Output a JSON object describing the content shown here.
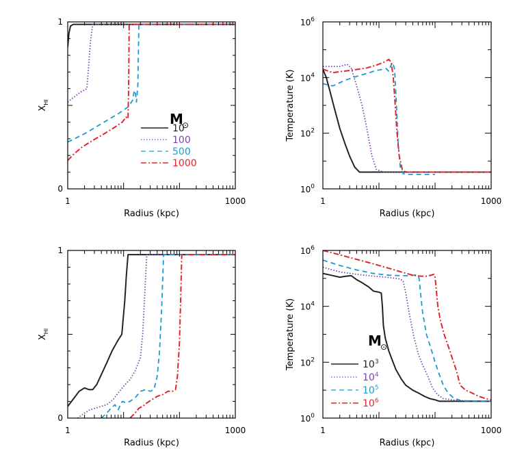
{
  "chart_data": [
    {
      "type": "line",
      "panel": "top-left",
      "xlabel": "Radius (kpc)",
      "ylabel": "X_HI",
      "xscale": "log",
      "xlim": [
        1,
        1000
      ],
      "ylim": [
        0,
        1
      ],
      "xticklabels": [
        "1",
        "1000"
      ],
      "yticks": [
        {
          "value": 0,
          "label": "0"
        },
        {
          "value": 1,
          "label": "1"
        }
      ],
      "legend": {
        "title": "M",
        "placement": "center-right"
      },
      "series": [
        {
          "name": "10",
          "color": "#222222",
          "width": 2.0,
          "dash": "none",
          "style": "solid",
          "x": [
            1,
            1.05,
            1.12,
            1.25,
            2,
            10,
            1000
          ],
          "y": [
            0.85,
            0.93,
            0.975,
            0.985,
            0.985,
            0.985,
            0.985
          ]
        },
        {
          "name": "100",
          "color": "#7b3fb3",
          "width": 1.8,
          "dash": "1.5,2.5",
          "style": "dotted",
          "x": [
            1,
            1.3,
            1.7,
            2.2,
            2.35,
            2.55,
            2.8,
            1000
          ],
          "y": [
            0.52,
            0.55,
            0.58,
            0.6,
            0.72,
            0.88,
            0.985,
            0.985
          ]
        },
        {
          "name": "500",
          "color": "#1a9bd0",
          "width": 1.8,
          "dash": "7,5",
          "style": "dashed",
          "x": [
            1,
            2,
            4,
            8,
            12,
            14.5,
            15.5,
            16.3,
            17,
            18,
            18.8,
            1000
          ],
          "y": [
            0.28,
            0.33,
            0.39,
            0.45,
            0.49,
            0.53,
            0.59,
            0.57,
            0.52,
            0.62,
            0.985,
            0.985
          ]
        },
        {
          "name": "1000",
          "color": "#e0262b",
          "width": 2.0,
          "dash": "8,3,2,3",
          "style": "dash-dot",
          "x": [
            1,
            1.3,
            1.8,
            2.8,
            4.5,
            7,
            9.5,
            11,
            12,
            12.3,
            12.6,
            1000
          ],
          "y": [
            0.17,
            0.21,
            0.25,
            0.29,
            0.33,
            0.37,
            0.4,
            0.43,
            0.42,
            0.6,
            0.985,
            0.985
          ]
        }
      ]
    },
    {
      "type": "line",
      "panel": "top-right",
      "xlabel": "Radius (kpc)",
      "ylabel": "Temperature (K)",
      "xscale": "log",
      "yscale": "log",
      "xlim": [
        1,
        1000
      ],
      "ylim": [
        1,
        1000000
      ],
      "xticklabels": [
        "1",
        "1000"
      ],
      "yticks": [
        {
          "value": 1,
          "base": "10",
          "exp": "0"
        },
        {
          "value": 100,
          "base": "10",
          "exp": "2"
        },
        {
          "value": 10000,
          "base": "10",
          "exp": "4"
        },
        {
          "value": 1000000,
          "base": "10",
          "exp": "6"
        }
      ],
      "series": [
        {
          "name": "10",
          "color": "#222222",
          "width": 2.0,
          "dash": "none",
          "x": [
            1,
            1.15,
            1.35,
            1.6,
            2.0,
            2.5,
            3.0,
            3.7,
            4.5,
            6,
            1000
          ],
          "y": [
            20000,
            10000,
            3000,
            800,
            150,
            40,
            15,
            6,
            4,
            4,
            4
          ]
        },
        {
          "name": "100",
          "color": "#7b3fb3",
          "width": 1.8,
          "dash": "1.5,2.5",
          "x": [
            1,
            2,
            2.7,
            3.2,
            4,
            5,
            6.2,
            7.5,
            9,
            12,
            1000
          ],
          "y": [
            25000,
            25000,
            30000,
            22000,
            5000,
            1000,
            120,
            15,
            5,
            4,
            4
          ]
        },
        {
          "name": "500",
          "color": "#1a9bd0",
          "width": 1.8,
          "dash": "7,5",
          "x": [
            1,
            1.5,
            2.5,
            4,
            6,
            9,
            12,
            13.5,
            14.8,
            16,
            17.5,
            19,
            20.5,
            22,
            24,
            27,
            30,
            38,
            100
          ],
          "y": [
            6000,
            5000,
            8000,
            11000,
            14000,
            18000,
            20000,
            21000,
            17000,
            25000,
            35000,
            20000,
            1000,
            40,
            6,
            3.5,
            3.3,
            3.3,
            3.3
          ]
        },
        {
          "name": "1000",
          "color": "#e0262b",
          "width": 2.0,
          "dash": "8,3,2,3",
          "x": [
            1,
            1.5,
            3,
            6,
            9,
            12,
            13.5,
            15,
            16.5,
            18,
            19.5,
            21,
            23,
            26,
            30,
            1000
          ],
          "y": [
            20000,
            15000,
            18000,
            22000,
            28000,
            35000,
            40000,
            45000,
            35000,
            10000,
            1000,
            100,
            15,
            5,
            4,
            4
          ]
        }
      ]
    },
    {
      "type": "line",
      "panel": "bottom-left",
      "xlabel": "Radius (kpc)",
      "ylabel": "X_HI",
      "xscale": "log",
      "xlim": [
        1,
        1000
      ],
      "ylim": [
        0,
        1
      ],
      "xticklabels": [
        "1",
        "1000"
      ],
      "yticks": [
        {
          "value": 0,
          "label": "0"
        },
        {
          "value": 1,
          "label": "1"
        }
      ],
      "series": [
        {
          "name": "10^3",
          "color": "#222222",
          "width": 2.0,
          "dash": "none",
          "x": [
            1,
            1.3,
            1.6,
            2,
            2.4,
            2.8,
            3.3,
            4,
            5,
            6.2,
            7.8,
            9.3,
            10.5,
            11.2,
            12,
            1000
          ],
          "y": [
            0.07,
            0.12,
            0.16,
            0.18,
            0.17,
            0.17,
            0.2,
            0.26,
            0.33,
            0.4,
            0.46,
            0.5,
            0.7,
            0.85,
            0.975,
            0.975
          ]
        },
        {
          "name": "10^4",
          "color": "#7b3fb3",
          "width": 1.8,
          "dash": "1.5,2.5",
          "x": [
            1.5,
            2,
            2.5,
            3.2,
            4,
            5,
            6.5,
            8,
            10,
            13,
            16,
            20,
            22,
            24,
            26,
            1000
          ],
          "y": [
            0,
            0.03,
            0.05,
            0.06,
            0.07,
            0.08,
            0.11,
            0.15,
            0.19,
            0.23,
            0.28,
            0.36,
            0.5,
            0.75,
            0.975,
            0.975
          ]
        },
        {
          "name": "10^5",
          "color": "#1a9bd0",
          "width": 1.8,
          "dash": "7,5",
          "x": [
            4,
            5,
            6,
            7,
            8,
            9.5,
            11,
            13,
            16,
            20,
            25,
            30,
            35,
            40,
            44,
            48,
            52,
            1000
          ],
          "y": [
            0,
            0.03,
            0.06,
            0.08,
            0.05,
            0.1,
            0.09,
            0.1,
            0.12,
            0.16,
            0.17,
            0.16,
            0.17,
            0.25,
            0.4,
            0.65,
            0.975,
            0.975
          ]
        },
        {
          "name": "10^6",
          "color": "#e0262b",
          "width": 2.0,
          "dash": "8,3,2,3",
          "x": [
            13,
            15,
            17,
            19,
            22,
            26,
            32,
            40,
            50,
            62,
            75,
            85,
            92,
            100,
            105,
            110,
            1000
          ],
          "y": [
            0,
            0.02,
            0.04,
            0.06,
            0.07,
            0.09,
            0.11,
            0.13,
            0.14,
            0.16,
            0.16,
            0.17,
            0.25,
            0.45,
            0.7,
            0.975,
            0.975
          ]
        }
      ]
    },
    {
      "type": "line",
      "panel": "bottom-right",
      "xlabel": "Radius (kpc)",
      "ylabel": "Temperature (K)",
      "xscale": "log",
      "yscale": "log",
      "xlim": [
        1,
        1000
      ],
      "ylim": [
        1,
        1000000
      ],
      "xticklabels": [
        "1",
        "1000"
      ],
      "yticks": [
        {
          "value": 1,
          "base": "10",
          "exp": "0"
        },
        {
          "value": 100,
          "base": "10",
          "exp": "2"
        },
        {
          "value": 10000,
          "base": "10",
          "exp": "4"
        },
        {
          "value": 1000000,
          "base": "10",
          "exp": "6"
        }
      ],
      "legend": {
        "title": "M",
        "placement": "bottom-left"
      },
      "series": [
        {
          "name": "10^3",
          "color": "#222222",
          "width": 2.0,
          "dash": "none",
          "x": [
            1,
            1.4,
            2,
            2.6,
            3.2,
            4,
            5,
            6.5,
            8,
            10,
            11,
            11.5,
            12,
            13,
            15,
            17.5,
            20,
            25,
            30,
            40,
            50,
            65,
            80,
            100,
            120,
            150,
            200,
            1000
          ],
          "y": [
            150000,
            130000,
            110000,
            120000,
            125000,
            90000,
            70000,
            50000,
            35000,
            32000,
            30000,
            10000,
            2000,
            700,
            250,
            110,
            55,
            25,
            15,
            10,
            8,
            6,
            5,
            4.5,
            4,
            4,
            4,
            4
          ]
        },
        {
          "name": "10^4",
          "color": "#7b3fb3",
          "width": 1.8,
          "dash": "1.5,2.5",
          "x": [
            1,
            2,
            4,
            8,
            14,
            20,
            24,
            27,
            30,
            35,
            42,
            50,
            60,
            75,
            90,
            110,
            140,
            200,
            300,
            1000
          ],
          "y": [
            250000,
            170000,
            140000,
            120000,
            110000,
            100000,
            95000,
            80000,
            30000,
            5000,
            800,
            200,
            80,
            30,
            12,
            7,
            5,
            4.5,
            4.2,
            4
          ]
        },
        {
          "name": "10^5",
          "color": "#1a9bd0",
          "width": 1.8,
          "dash": "7,5",
          "x": [
            1,
            2,
            4,
            8,
            15,
            25,
            35,
            42,
            48,
            52,
            55,
            60,
            70,
            85,
            100,
            120,
            140,
            170,
            220,
            300,
            1000
          ],
          "y": [
            450000,
            290000,
            200000,
            150000,
            130000,
            125000,
            125000,
            130000,
            135000,
            100000,
            30000,
            6000,
            1000,
            300,
            100,
            35,
            15,
            8,
            5,
            4.2,
            4
          ]
        },
        {
          "name": "10^6",
          "color": "#e0262b",
          "width": 2.0,
          "dash": "8,3,2,3",
          "x": [
            1,
            2,
            4,
            8,
            15,
            25,
            40,
            55,
            70,
            85,
            95,
            100,
            105,
            112,
            125,
            145,
            170,
            200,
            240,
            280,
            350,
            450,
            600,
            800,
            1000
          ],
          "y": [
            1000000,
            700000,
            480000,
            330000,
            230000,
            170000,
            130000,
            120000,
            120000,
            130000,
            140000,
            110000,
            40000,
            10000,
            3000,
            1000,
            400,
            150,
            50,
            15,
            10,
            8,
            6,
            5,
            4.5
          ]
        }
      ]
    }
  ],
  "legend_top": {
    "title": "M",
    "entries": [
      "10",
      "100",
      "500",
      "1000"
    ]
  },
  "legend_bottom": {
    "title": "M",
    "entries": [
      {
        "base": "10",
        "exp": "3"
      },
      {
        "base": "10",
        "exp": "4"
      },
      {
        "base": "10",
        "exp": "5"
      },
      {
        "base": "10",
        "exp": "6"
      }
    ]
  }
}
